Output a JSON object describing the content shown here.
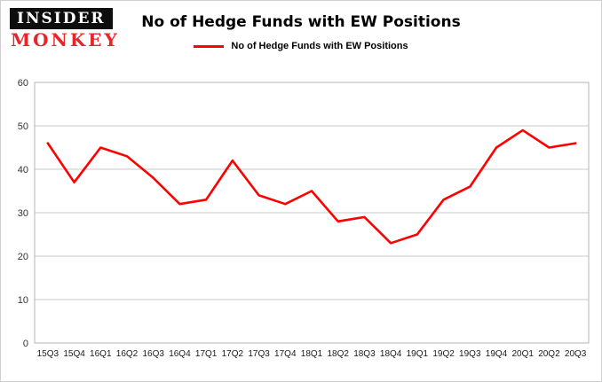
{
  "logo": {
    "line1": "INSIDER",
    "line2": "MONKEY"
  },
  "title": "No of Hedge Funds with EW Positions",
  "legend": {
    "label": "No of Hedge Funds with EW Positions",
    "color": "#ff0000"
  },
  "chart_data": {
    "type": "line",
    "title": "No of Hedge Funds with EW Positions",
    "categories": [
      "15Q3",
      "15Q4",
      "16Q1",
      "16Q2",
      "16Q3",
      "16Q4",
      "17Q1",
      "17Q2",
      "17Q3",
      "17Q4",
      "18Q1",
      "18Q2",
      "18Q3",
      "18Q4",
      "19Q1",
      "19Q2",
      "19Q3",
      "19Q4",
      "20Q1",
      "20Q2",
      "20Q3"
    ],
    "values": [
      46,
      37,
      45,
      43,
      38,
      32,
      33,
      42,
      34,
      32,
      35,
      28,
      29,
      23,
      25,
      33,
      36,
      45,
      49,
      45,
      46
    ],
    "xlabel": "",
    "ylabel": "",
    "ylim": [
      0,
      60
    ],
    "yticks": [
      0,
      10,
      20,
      30,
      40,
      50,
      60
    ],
    "line_color": "#ff0000",
    "grid": true,
    "legend_position": "top"
  }
}
